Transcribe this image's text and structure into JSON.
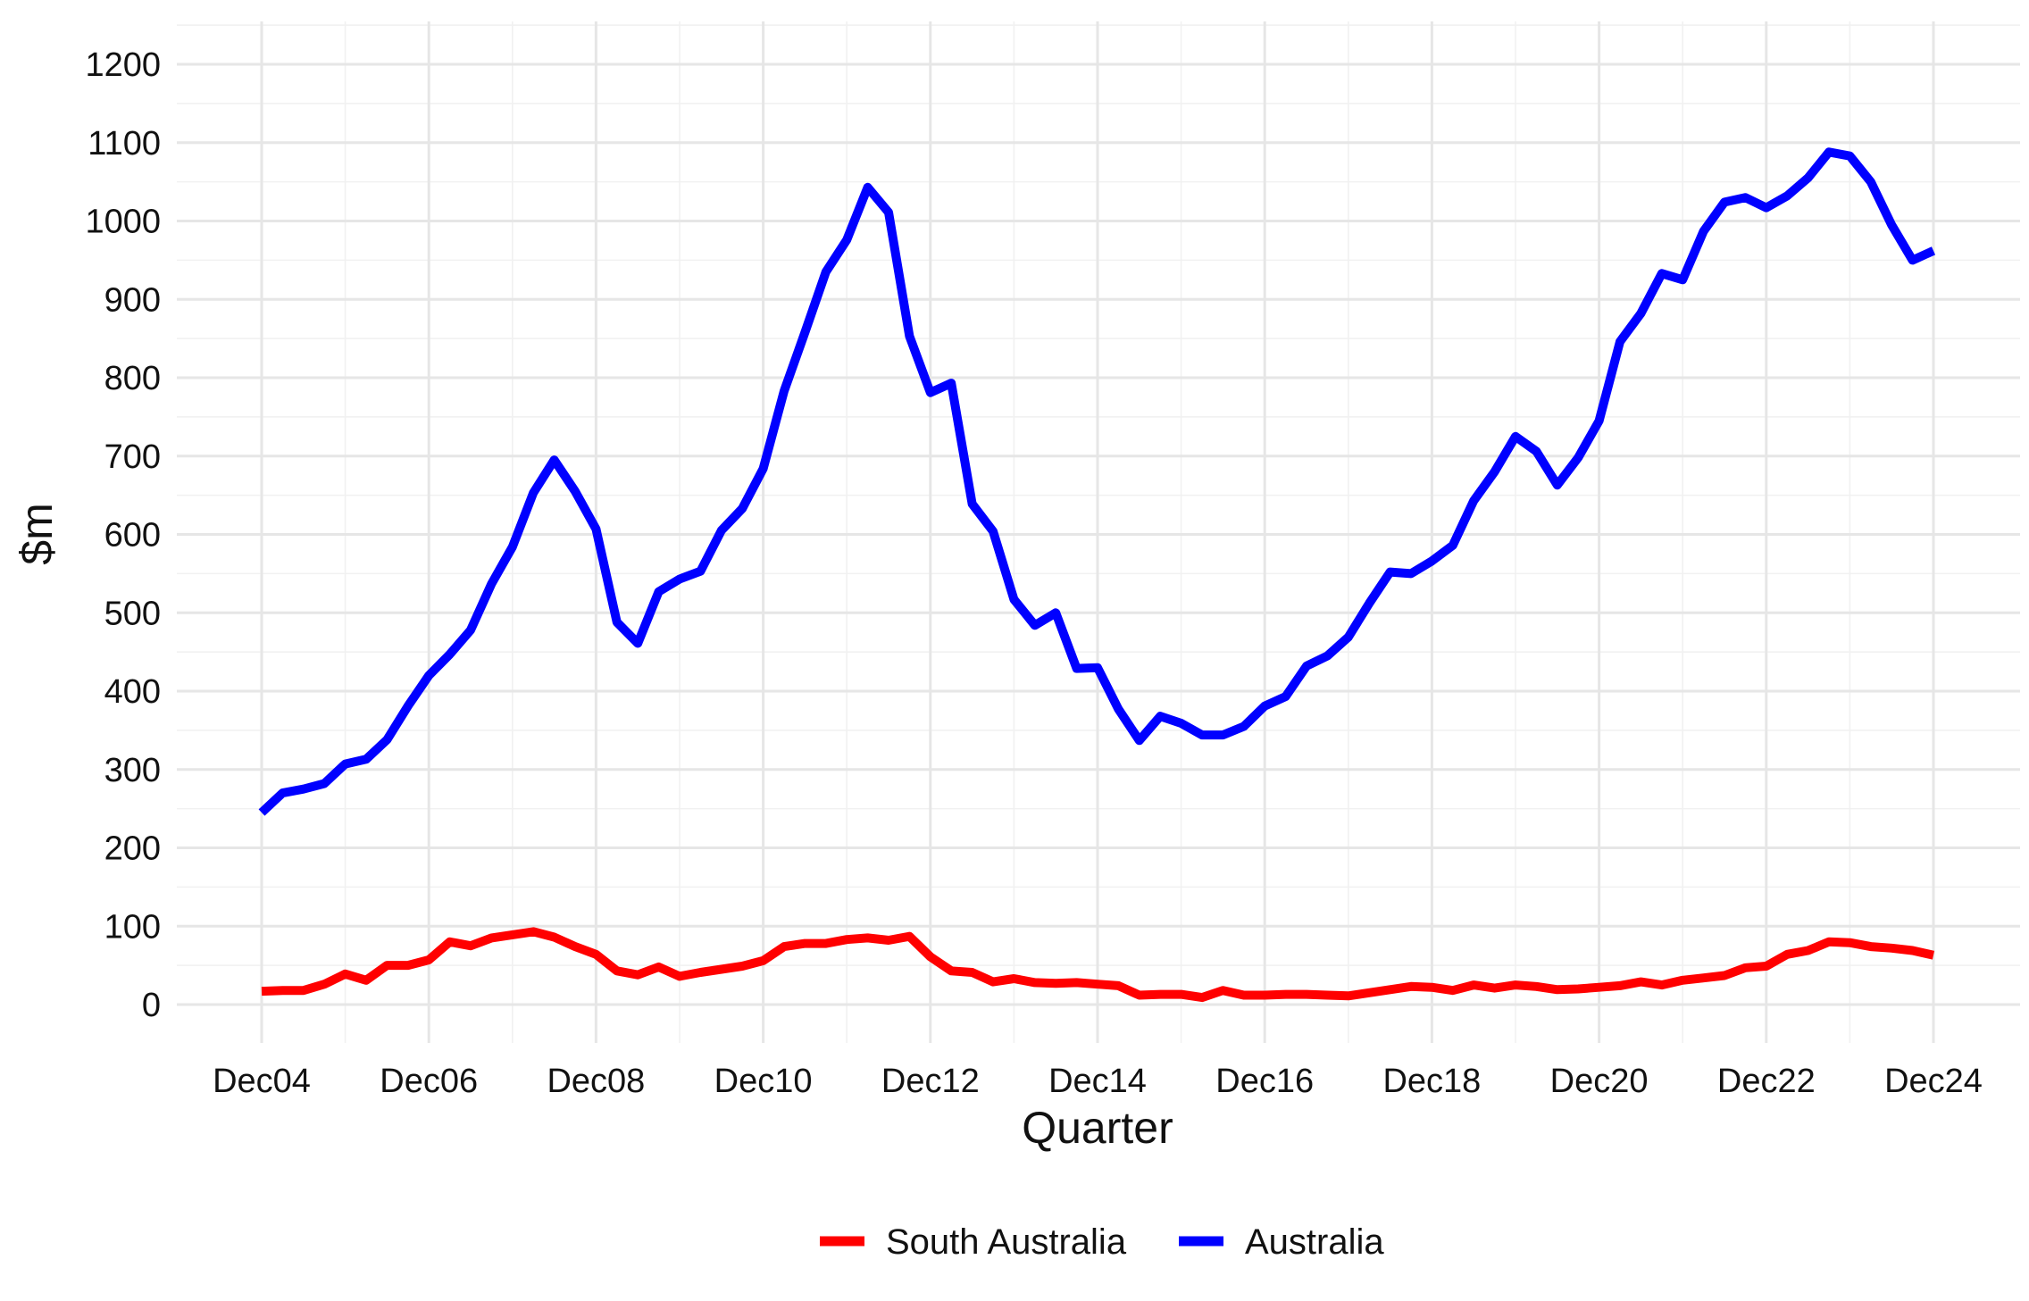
{
  "chart_data": {
    "type": "line",
    "title": "",
    "xlabel": "Quarter",
    "ylabel": "$m",
    "ylim": [
      -50,
      1250
    ],
    "yticks": [
      "0",
      "100",
      "200",
      "300",
      "400",
      "500",
      "600",
      "700",
      "800",
      "900",
      "1000",
      "1100",
      "1200"
    ],
    "xticks": [
      "Dec04",
      "Dec06",
      "Dec08",
      "Dec10",
      "Dec12",
      "Dec14",
      "Dec16",
      "Dec18",
      "Dec20",
      "Dec22",
      "Dec24"
    ],
    "x_start": "Dec04",
    "x_end": "Dec24",
    "frequency": "quarterly",
    "grid": true,
    "legend_position": "bottom",
    "series": [
      {
        "name": "South Australia",
        "color": "#ff0000",
        "values": [
          17,
          18,
          18,
          26,
          39,
          31,
          50,
          50,
          57,
          80,
          75,
          85,
          89,
          93,
          86,
          74,
          64,
          43,
          38,
          48,
          36,
          41,
          45,
          49,
          56,
          74,
          78,
          78,
          83,
          85,
          82,
          87,
          61,
          43,
          41,
          29,
          33,
          28,
          27,
          28,
          26,
          24,
          12,
          13,
          13,
          9,
          18,
          12,
          12,
          13,
          13,
          12,
          11,
          15,
          19,
          23,
          22,
          18,
          25,
          21,
          25,
          23,
          19,
          20,
          22,
          24,
          29,
          25,
          31,
          34,
          37,
          47,
          49,
          64,
          69,
          80,
          79,
          74,
          72,
          69,
          63
        ]
      },
      {
        "name": "Australia",
        "color": "#0000ff",
        "values": [
          245,
          270,
          275,
          282,
          307,
          313,
          338,
          381,
          420,
          447,
          478,
          537,
          584,
          653,
          695,
          655,
          607,
          488,
          461,
          527,
          543,
          553,
          605,
          633,
          684,
          783,
          858,
          935,
          976,
          1043,
          1011,
          853,
          781,
          793,
          639,
          604,
          517,
          484,
          500,
          429,
          430,
          377,
          337,
          368,
          359,
          344,
          344,
          355,
          381,
          393,
          432,
          445,
          469,
          512,
          552,
          550,
          566,
          586,
          643,
          680,
          725,
          706,
          663,
          698,
          745,
          846,
          882,
          933,
          925,
          987,
          1024,
          1030,
          1017,
          1032,
          1055,
          1088,
          1083,
          1050,
          995,
          950,
          962
        ]
      }
    ]
  }
}
